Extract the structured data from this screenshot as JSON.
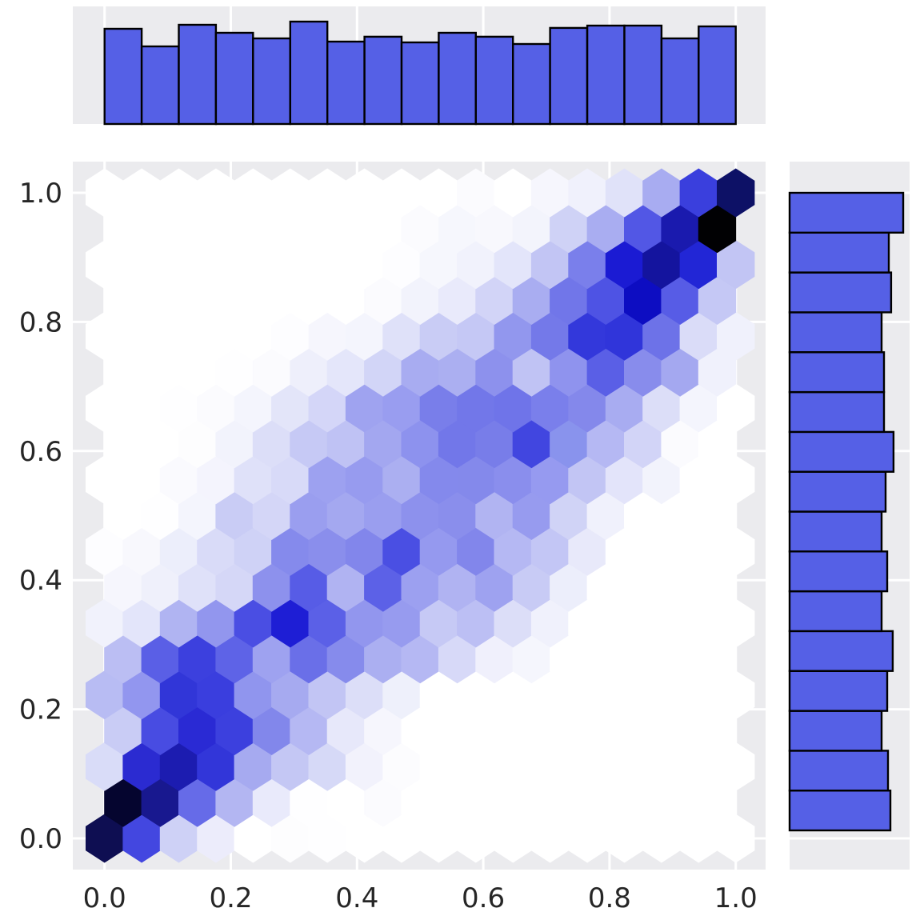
{
  "chart_data": {
    "type": "heatmap",
    "subtype": "hexbin-jointplot-with-marginal-histograms",
    "title": "",
    "xlabel": "",
    "ylabel": "",
    "xlim": [
      -0.05,
      1.08
    ],
    "ylim": [
      -0.06,
      1.07
    ],
    "grid": true,
    "legend": "none",
    "axes": {
      "x_tick_labels": [
        "0.0",
        "0.2",
        "0.4",
        "0.6",
        "0.8",
        "1.0"
      ],
      "x_tick_values": [
        0.0,
        0.2,
        0.4,
        0.6,
        0.8,
        1.0
      ],
      "y_tick_labels": [
        "0.0",
        "0.2",
        "0.4",
        "0.6",
        "0.8",
        "1.0"
      ],
      "y_tick_values": [
        0.0,
        0.2,
        0.4,
        0.6,
        0.8,
        1.0
      ],
      "tick_label_color": "#262626",
      "panel_background": "#ebebee",
      "grid_color": "#ffffff"
    },
    "hexbin": {
      "description": "Joint density of x vs y, strongly correlated along the diagonal from (0,0) to (1,1). nx columns=17 across [0,1]; 19 staggered rows (row step 1/18). Even rows have 18 cells centered at x=i/17; odd rows have 17 cells centered at x=(i+0.5)/17. Colors run white (empty) through periwinkle and blue to black (densest).",
      "nx": 17,
      "n_rows": 19,
      "colormap": {
        "low": "#ffffff",
        "mid": "#3a3fe0",
        "high": "#000000"
      },
      "rows": [
        [
          "#0e0e52",
          "#4347e0",
          "#ced1f6",
          "#ececfb",
          "#ffffff",
          "#fdfdfe",
          "#fefeff",
          "#ffffff",
          "#ffffff",
          "#ffffff",
          "#ffffff",
          "#ffffff",
          "#ffffff",
          "#ffffff",
          "#ffffff",
          "#ffffff",
          "#ffffff",
          "#ffffff"
        ],
        [
          "#05052f",
          "#18188f",
          "#666be8",
          "#b3b6f2",
          "#e9eafb",
          "#fefeff",
          "#ffffff",
          "#fbfbfe",
          "#ffffff",
          "#ffffff",
          "#ffffff",
          "#ffffff",
          "#ffffff",
          "#ffffff",
          "#ffffff",
          "#ffffff",
          "#ffffff"
        ],
        [
          "#d9dcf8",
          "#2b2bd1",
          "#1c1cb0",
          "#3236d9",
          "#a6aaf0",
          "#c4c7f4",
          "#d6d9f7",
          "#f2f2fc",
          "#fcfcfe",
          "#ffffff",
          "#ffffff",
          "#ffffff",
          "#ffffff",
          "#ffffff",
          "#ffffff",
          "#ffffff",
          "#ffffff",
          "#ffffff"
        ],
        [
          "#c9ccf5",
          "#484ce2",
          "#2a2ad4",
          "#3c40de",
          "#8287eb",
          "#b5b8f3",
          "#e7e8fa",
          "#f6f6fd",
          "#ffffff",
          "#ffffff",
          "#ffffff",
          "#ffffff",
          "#ffffff",
          "#ffffff",
          "#ffffff",
          "#ffffff",
          "#ffffff"
        ],
        [
          "#b8bcf3",
          "#9296ef",
          "#3136d8",
          "#3a3ede",
          "#9095ee",
          "#a6aaf0",
          "#c2c5f4",
          "#dcdef8",
          "#eef0fb",
          "#ffffff",
          "#ffffff",
          "#ffffff",
          "#ffffff",
          "#ffffff",
          "#ffffff",
          "#ffffff",
          "#ffffff",
          "#ffffff"
        ],
        [
          "#bbbef3",
          "#5a5fe6",
          "#3c40de",
          "#5e63e7",
          "#9ea2f0",
          "#6a6fe8",
          "#868bec",
          "#abaff1",
          "#b5b8f3",
          "#d7d9f8",
          "#f0f0fc",
          "#f5f6fd",
          "#ffffff",
          "#ffffff",
          "#ffffff",
          "#ffffff",
          "#ffffff"
        ],
        [
          "#f1f2fc",
          "#e3e5fa",
          "#b0b4f2",
          "#9296ee",
          "#4a4ee3",
          "#1e1ed5",
          "#5b60e7",
          "#9296ee",
          "#979bef",
          "#c6c9f5",
          "#bcbff4",
          "#dcdef8",
          "#f0f1fc",
          "#ffffff",
          "#ffffff",
          "#ffffff",
          "#ffffff",
          "#ffffff"
        ],
        [
          "#f6f6fd",
          "#eff0fb",
          "#dfe1f9",
          "#d5d7f7",
          "#8d91ed",
          "#575ce6",
          "#b0b3f2",
          "#5c61e7",
          "#9ca0f0",
          "#b0b3f2",
          "#9ea2f0",
          "#c8cbf5",
          "#eceefb",
          "#ffffff",
          "#ffffff",
          "#ffffff",
          "#ffffff"
        ],
        [
          "#fdfdff",
          "#f8f8fd",
          "#eceefb",
          "#d9dbf8",
          "#cfd2f6",
          "#858aec",
          "#8a8eec",
          "#8286eb",
          "#4a4fe3",
          "#9599ef",
          "#8286eb",
          "#b5b8f3",
          "#c3c6f5",
          "#e8e9fa",
          "#ffffff",
          "#ffffff",
          "#ffffff",
          "#ffffff"
        ],
        [
          "#ffffff",
          "#fefeff",
          "#f4f5fd",
          "#c9ccf5",
          "#d4d6f7",
          "#9a9eef",
          "#a4a8f0",
          "#9a9eef",
          "#8d91ed",
          "#8a8eec",
          "#b1b4f2",
          "#979bef",
          "#d0d3f6",
          "#f0f1fc",
          "#ffffff",
          "#ffffff",
          "#ffffff"
        ],
        [
          "#ffffff",
          "#ffffff",
          "#fafafe",
          "#f4f4fd",
          "#dfe1f9",
          "#d8daf8",
          "#9da1f0",
          "#979bef",
          "#abaff1",
          "#8489ec",
          "#8489eb",
          "#8a8eed",
          "#969af0",
          "#c2c5f4",
          "#e3e4fa",
          "#f2f3fc",
          "#ffffff",
          "#ffffff"
        ],
        [
          "#ffffff",
          "#ffffff",
          "#fdfdfe",
          "#f2f3fc",
          "#dcdef8",
          "#c6c9f5",
          "#bfc2f4",
          "#a3a7f0",
          "#8d92ee",
          "#7277e9",
          "#787de9",
          "#4146e0",
          "#8993ed",
          "#b5b8f3",
          "#d2d4f7",
          "#fbfbfe",
          "#ffffff"
        ],
        [
          "#ffffff",
          "#ffffff",
          "#fefeff",
          "#fbfbfe",
          "#f4f5fd",
          "#e3e5f9",
          "#d4d6f8",
          "#9fa3f0",
          "#999df0",
          "#797eea",
          "#7277e9",
          "#6f74e9",
          "#7a7feb",
          "#8488eb",
          "#a8acf1",
          "#dcdef8",
          "#f4f5fd",
          "#ffffff"
        ],
        [
          "#ffffff",
          "#ffffff",
          "#ffffff",
          "#fefeff",
          "#fbfbfe",
          "#eeeffb",
          "#e4e6fa",
          "#d2d5f7",
          "#a8acf1",
          "#abaff1",
          "#8d91ed",
          "#c0c3f4",
          "#8f93ee",
          "#5a5fe6",
          "#888cec",
          "#a4a8f0",
          "#f0f1fc"
        ],
        [
          "#ffffff",
          "#ffffff",
          "#ffffff",
          "#ffffff",
          "#ffffff",
          "#fdfdff",
          "#f6f6fd",
          "#f4f5fd",
          "#dfe1f9",
          "#c9ccf5",
          "#c5c8f5",
          "#9297ee",
          "#7479e9",
          "#3338db",
          "#3035da",
          "#6d72e8",
          "#dadcf8",
          "#f0f1fc"
        ],
        [
          "#ffffff",
          "#ffffff",
          "#ffffff",
          "#ffffff",
          "#ffffff",
          "#ffffff",
          "#ffffff",
          "#fbfbfe",
          "#f2f3fc",
          "#e9eafb",
          "#d2d4f7",
          "#a9adf1",
          "#7176e9",
          "#4e53e4",
          "#0d0dc2",
          "#575ce6",
          "#c5c8f5"
        ],
        [
          "#ffffff",
          "#ffffff",
          "#ffffff",
          "#ffffff",
          "#ffffff",
          "#ffffff",
          "#ffffff",
          "#ffffff",
          "#fdfdff",
          "#f6f7fd",
          "#f1f2fc",
          "#e3e5fa",
          "#c2c5f4",
          "#7a7feb",
          "#1b1bd3",
          "#14149e",
          "#2226d6",
          "#c2c5f4"
        ],
        [
          "#ffffff",
          "#ffffff",
          "#ffffff",
          "#ffffff",
          "#ffffff",
          "#ffffff",
          "#ffffff",
          "#ffffff",
          "#fbfbfe",
          "#f6f7fd",
          "#f8f8fd",
          "#f3f4fc",
          "#cfd2f6",
          "#a9adf1",
          "#5257e5",
          "#1a1aae",
          "#010103"
        ],
        [
          "#ffffff",
          "#ffffff",
          "#ffffff",
          "#ffffff",
          "#ffffff",
          "#ffffff",
          "#ffffff",
          "#ffffff",
          "#ffffff",
          "#ffffff",
          "#fbfbfe",
          "#ffffff",
          "#f6f6fd",
          "#f0f1fc",
          "#e0e2f9",
          "#a8acf1",
          "#3a3fdd",
          "#0d1166"
        ]
      ]
    },
    "top_marginal_histogram": {
      "orientation": "vertical",
      "bins": 17,
      "range": [
        0.0,
        1.0
      ],
      "bar_color": "#5560e6",
      "bar_edge_color": "#000000",
      "heights_norm": [
        0.93,
        0.758,
        0.969,
        0.891,
        0.836,
        1.0,
        0.805,
        0.852,
        0.797,
        0.891,
        0.852,
        0.781,
        0.938,
        0.961,
        0.961,
        0.836,
        0.953
      ]
    },
    "right_marginal_histogram": {
      "orientation": "horizontal",
      "bins": 16,
      "range": [
        0.0,
        1.0
      ],
      "bar_color": "#5560e6",
      "bar_edge_color": "#000000",
      "widths_norm_bottom_to_top": [
        0.887,
        0.866,
        0.81,
        0.859,
        0.908,
        0.81,
        0.859,
        0.81,
        0.845,
        0.915,
        0.831,
        0.831,
        0.81,
        0.894,
        0.873,
        1.0
      ]
    }
  }
}
